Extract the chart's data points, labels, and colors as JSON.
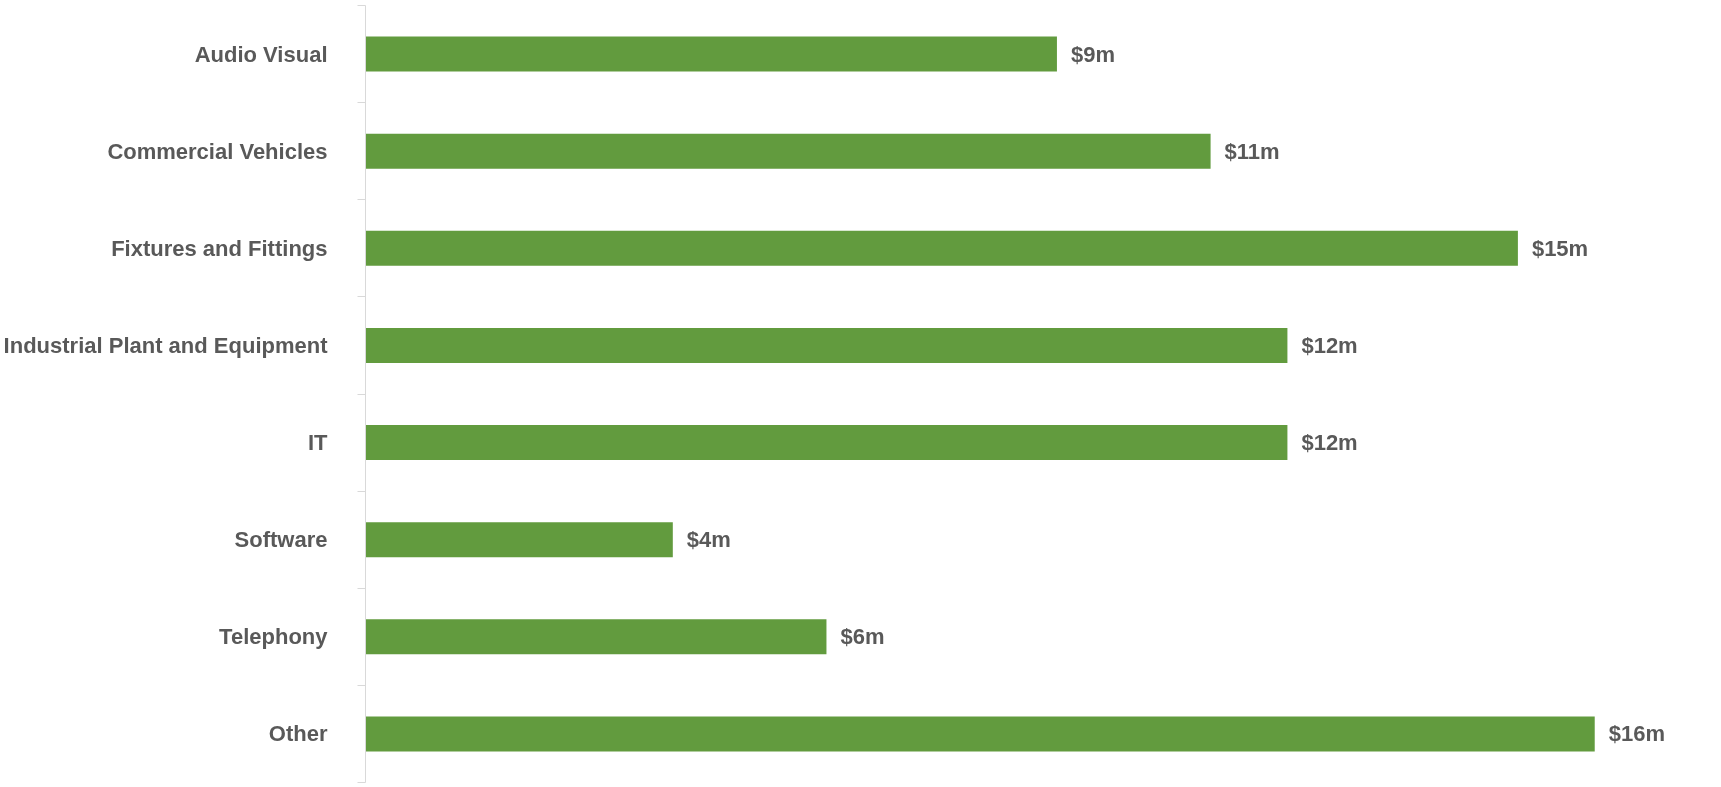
{
  "chart_data": {
    "type": "bar",
    "orientation": "horizontal",
    "categories": [
      "Audio Visual",
      "Commercial Vehicles",
      "Fixtures and Fittings",
      "Industrial Plant and Equipment",
      "IT",
      "Software",
      "Telephony",
      "Other"
    ],
    "values": [
      9,
      11,
      15,
      12,
      12,
      4,
      6,
      16
    ],
    "value_labels": [
      "$9m",
      "$11m",
      "$15m",
      "$12m",
      "$12m",
      "$4m",
      "$6m",
      "$16m"
    ],
    "color": "#629b3e"
  }
}
